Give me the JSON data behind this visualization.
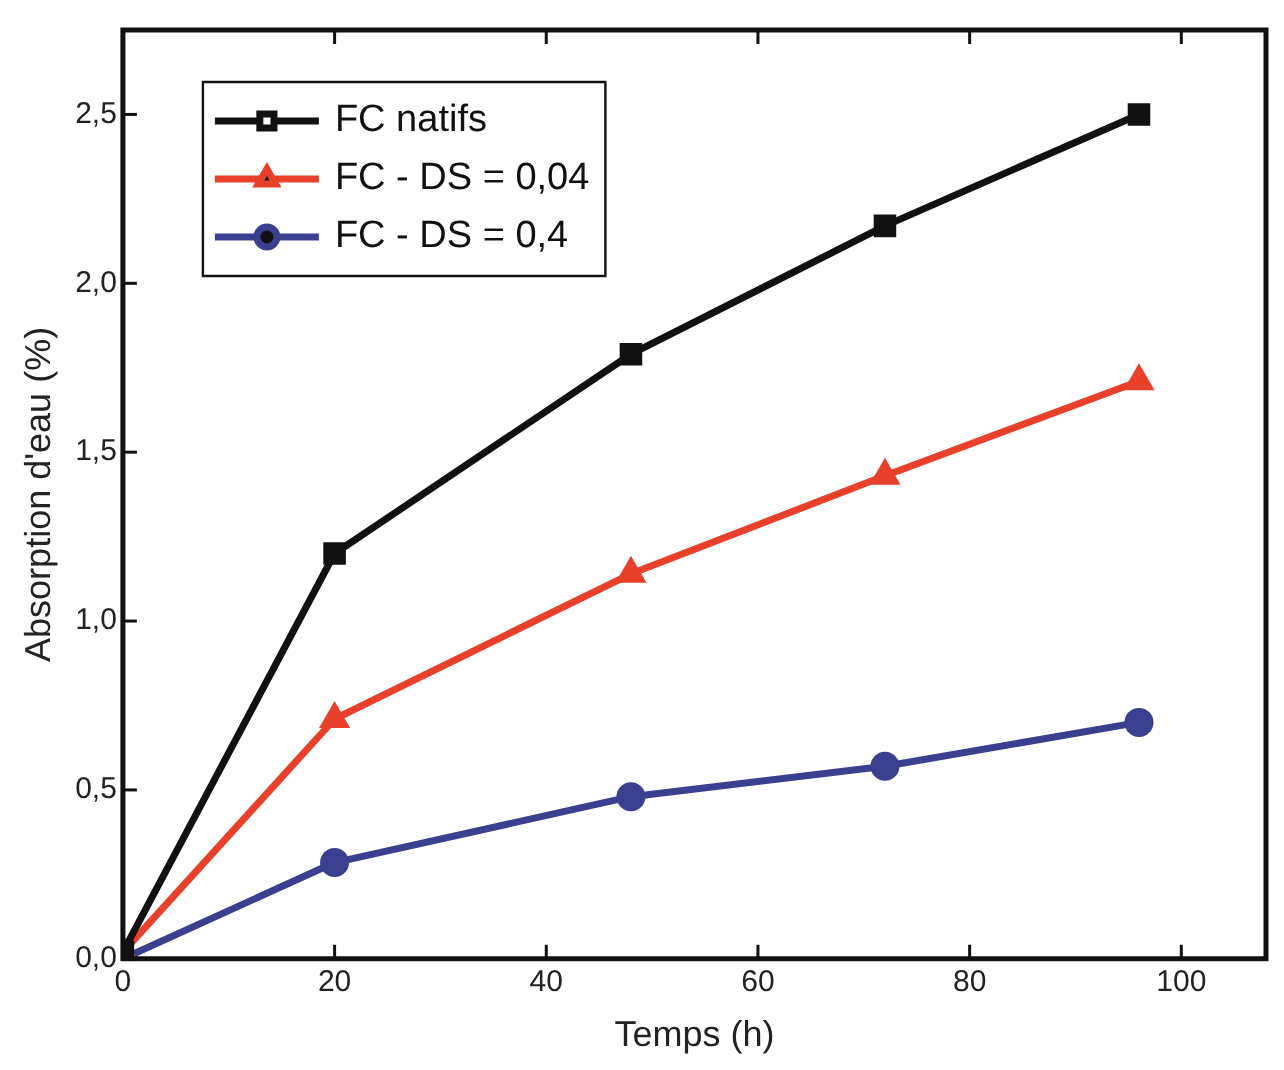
{
  "chart_data": {
    "type": "line",
    "xlabel": "Temps (h)",
    "ylabel": "Absorption d'eau (%)",
    "x": [
      0,
      20,
      48,
      72,
      96
    ],
    "series": [
      {
        "name": "FC natifs",
        "color": "#111111",
        "marker": "square",
        "values": [
          0.02,
          1.2,
          1.79,
          2.17,
          2.5
        ]
      },
      {
        "name": "FC - DS = 0,04",
        "color": "#e8402a",
        "marker": "triangle",
        "values": [
          0.02,
          0.71,
          1.14,
          1.43,
          1.71
        ]
      },
      {
        "name": "FC - DS = 0,4",
        "color": "#3a3f8f",
        "marker": "circle",
        "values": [
          0,
          0.285,
          0.48,
          0.57,
          0.7
        ]
      }
    ],
    "xlim": [
      0,
      108
    ],
    "xticks": [
      0,
      20,
      40,
      60,
      80,
      100
    ],
    "ylim": [
      0,
      2.75
    ],
    "yticks": [
      {
        "value": 0,
        "label": "0,0"
      },
      {
        "value": 0.5,
        "label": "0,5"
      },
      {
        "value": 1,
        "label": "1,0"
      },
      {
        "value": 1.5,
        "label": "1,5"
      },
      {
        "value": 2,
        "label": "2,0"
      },
      {
        "value": 2.5,
        "label": "2,5"
      }
    ],
    "legend": "top left",
    "grid": false,
    "line_style": "solid"
  }
}
